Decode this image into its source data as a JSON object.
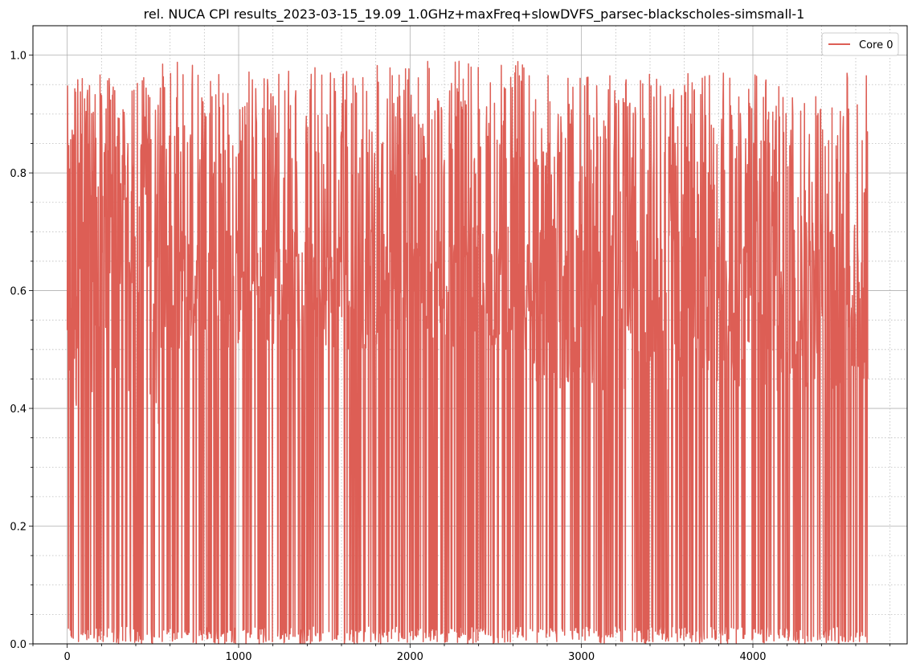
{
  "chart_data": {
    "type": "line",
    "title": "rel. NUCA CPI results_2023-03-15_19.09_1.0GHz+maxFreq+slowDVFS_parsec-blackscholes-simsmall-1",
    "xlabel": "",
    "ylabel": "",
    "xlim": [
      -200,
      4900
    ],
    "ylim": [
      0.0,
      1.05
    ],
    "x_ticks": [
      0,
      1000,
      2000,
      3000,
      4000
    ],
    "x_tick_labels": [
      "0",
      "1000",
      "2000",
      "3000",
      "4000"
    ],
    "y_ticks": [
      0.0,
      0.2,
      0.4,
      0.6,
      0.8,
      1.0
    ],
    "y_tick_labels": [
      "0.0",
      "0.2",
      "0.4",
      "0.6",
      "0.8",
      "1.0"
    ],
    "grid": {
      "major": true,
      "minor": true
    },
    "legend": {
      "placement": "top-right"
    },
    "series": [
      {
        "name": "Core 0",
        "color": "#dd5e55",
        "x_start": 0,
        "x_end": 4670,
        "description_segments": [
          {
            "x_from": 0,
            "x_to": 540,
            "low": 0.0,
            "high": 0.97
          },
          {
            "x_from": 540,
            "x_to": 2720,
            "low": 0.0,
            "high": 0.99,
            "mid_band": [
              0.5,
              0.56
            ]
          },
          {
            "x_from": 2720,
            "x_to": 4670,
            "low": 0.0,
            "high": 0.97,
            "mid_band": [
              0.43,
              0.58
            ]
          }
        ],
        "end_value": 0.45
      }
    ]
  }
}
